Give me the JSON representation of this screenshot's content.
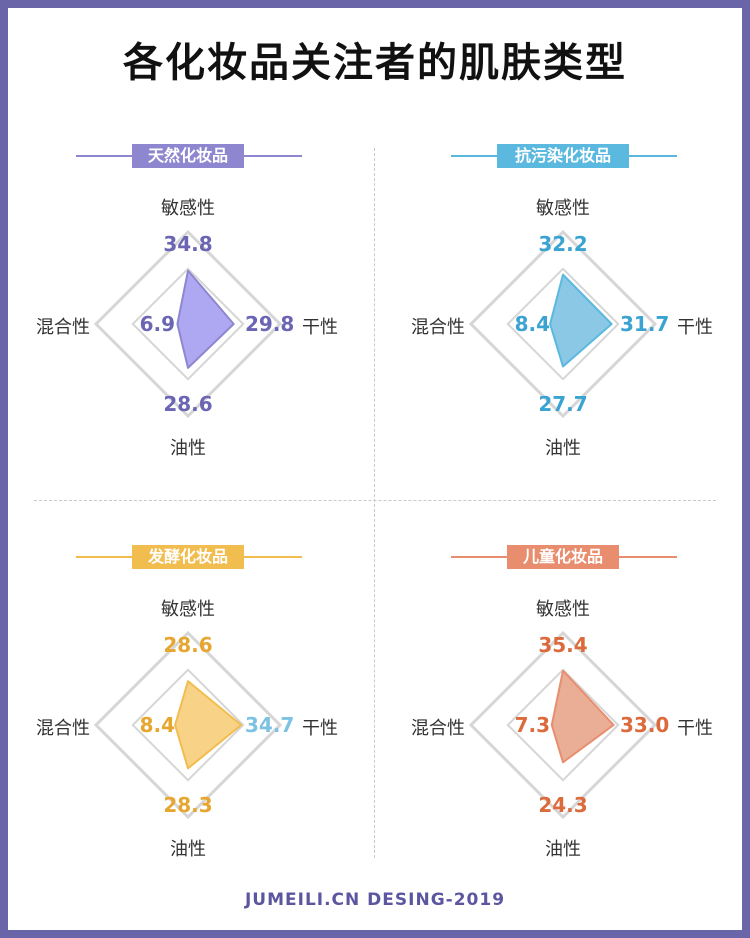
{
  "title": "各化妆品关注者的肌肤类型",
  "footer": "JUMEILI.CN DESING-2019",
  "axes": {
    "top": "敏感性",
    "right": "干性",
    "bottom": "油性",
    "left": "混合性"
  },
  "colors": {
    "purple": "#8e87cf",
    "blue": "#5bb8df",
    "yellow": "#f2bd4f",
    "orange": "#e88d6e",
    "purpleFill": "#a49ef0",
    "blueFill": "#7ec2e3",
    "yellowFill": "#f7cd7a",
    "orangeFill": "#e8a58c",
    "purpleText": "#6c65b3",
    "blueText": "#3aa3d2",
    "yellowText": "#e6a62f",
    "orangeText": "#db6a3c"
  },
  "chart_data": [
    {
      "type": "radar",
      "title": "天然化妆品",
      "axes": [
        "敏感性",
        "干性",
        "油性",
        "混合性"
      ],
      "values": [
        34.8,
        29.8,
        28.6,
        6.9
      ],
      "labels": [
        "34.8",
        "29.8",
        "28.6",
        "6.9"
      ]
    },
    {
      "type": "radar",
      "title": "抗污染化妆品",
      "axes": [
        "敏感性",
        "干性",
        "油性",
        "混合性"
      ],
      "values": [
        32.2,
        31.7,
        27.7,
        8.4
      ],
      "labels": [
        "32.2",
        "31.7",
        "27.7",
        "8.4"
      ]
    },
    {
      "type": "radar",
      "title": "发酵化妆品",
      "axes": [
        "敏感性",
        "干性",
        "油性",
        "混合性"
      ],
      "values": [
        28.6,
        34.7,
        28.3,
        8.4
      ],
      "labels": [
        "28.6",
        "34.7",
        "28.3",
        "8.4"
      ]
    },
    {
      "type": "radar",
      "title": "儿童化妆品",
      "axes": [
        "敏感性",
        "干性",
        "油性",
        "混合性"
      ],
      "values": [
        35.4,
        33.0,
        24.3,
        7.3
      ],
      "labels": [
        "35.4",
        "33.0",
        "24.3",
        "7.3"
      ]
    }
  ]
}
